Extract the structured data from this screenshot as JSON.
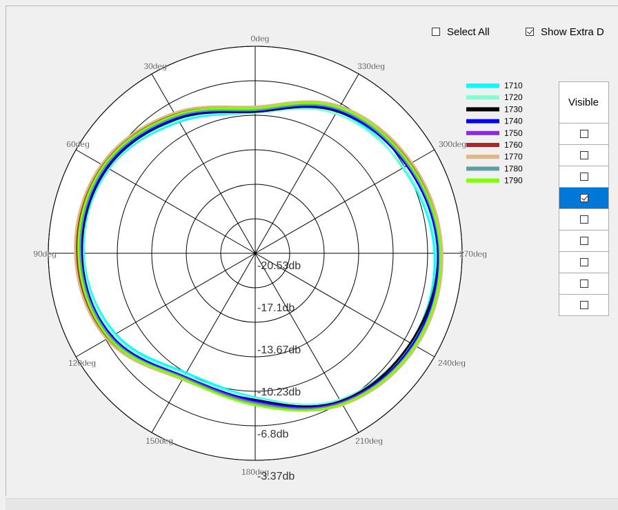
{
  "controls": {
    "select_all_label": "Select All",
    "show_extra_label": "Show Extra D"
  },
  "table": {
    "header": "Visible",
    "rows": [
      {
        "checked": false,
        "selected": false
      },
      {
        "checked": false,
        "selected": false
      },
      {
        "checked": false,
        "selected": false
      },
      {
        "checked": true,
        "selected": true
      },
      {
        "checked": false,
        "selected": false
      },
      {
        "checked": false,
        "selected": false
      },
      {
        "checked": false,
        "selected": false
      },
      {
        "checked": false,
        "selected": false
      },
      {
        "checked": false,
        "selected": false
      }
    ]
  },
  "chart_data": {
    "type": "polar-line",
    "angle_labels": [
      "0deg",
      "30deg",
      "60deg",
      "90deg",
      "120deg",
      "150deg",
      "180deg",
      "210deg",
      "240deg",
      "270deg",
      "300deg",
      "330deg"
    ],
    "radial_labels": [
      "-20.53db",
      "-17.1db",
      "-13.67db",
      "-10.23db",
      "-6.8db",
      "-3.37db"
    ],
    "radial_range": [
      -24.0,
      0.0
    ],
    "angle_direction": "counterclockwise-from-top",
    "grid": true,
    "legend_position": "right",
    "series": [
      {
        "name": "1710",
        "color": "#00ffff",
        "points": [
          [
            0,
            -7.7
          ],
          [
            30,
            -6.4
          ],
          [
            60,
            -4.4
          ],
          [
            90,
            -4.1
          ],
          [
            120,
            -5.3
          ],
          [
            150,
            -8.0
          ],
          [
            180,
            -7.3
          ],
          [
            210,
            -4.4
          ],
          [
            240,
            -3.2
          ],
          [
            270,
            -3.2
          ],
          [
            300,
            -4.2
          ],
          [
            330,
            -5.0
          ]
        ]
      },
      {
        "name": "1720",
        "color": "#7fffd4",
        "points": [
          [
            0,
            -7.7
          ],
          [
            30,
            -6.2
          ],
          [
            60,
            -4.3
          ],
          [
            90,
            -4.0
          ],
          [
            120,
            -5.1
          ],
          [
            150,
            -7.7
          ],
          [
            180,
            -7.2
          ],
          [
            210,
            -4.4
          ],
          [
            240,
            -3.0
          ],
          [
            270,
            -3.0
          ],
          [
            300,
            -4.1
          ],
          [
            330,
            -5.3
          ]
        ]
      },
      {
        "name": "1730",
        "color": "#000000",
        "points": [
          [
            0,
            -7.6
          ],
          [
            30,
            -6.0
          ],
          [
            60,
            -4.2
          ],
          [
            90,
            -3.9
          ],
          [
            120,
            -4.7
          ],
          [
            150,
            -7.1
          ],
          [
            180,
            -7.0
          ],
          [
            210,
            -4.2
          ],
          [
            240,
            -3.2
          ],
          [
            270,
            -2.8
          ],
          [
            300,
            -3.6
          ],
          [
            330,
            -5.0
          ]
        ]
      },
      {
        "name": "1740",
        "color": "#0000ff",
        "points": [
          [
            0,
            -7.5
          ],
          [
            30,
            -5.9
          ],
          [
            60,
            -4.1
          ],
          [
            90,
            -3.8
          ],
          [
            120,
            -4.8
          ],
          [
            150,
            -7.5
          ],
          [
            180,
            -6.9
          ],
          [
            210,
            -4.1
          ],
          [
            240,
            -2.9
          ],
          [
            270,
            -2.8
          ],
          [
            300,
            -3.7
          ],
          [
            330,
            -4.9
          ]
        ]
      },
      {
        "name": "1750",
        "color": "#8a2be2",
        "points": [
          [
            0,
            -7.3
          ],
          [
            30,
            -5.6
          ],
          [
            60,
            -3.9
          ],
          [
            90,
            -3.6
          ],
          [
            120,
            -4.5
          ],
          [
            150,
            -7.4
          ],
          [
            180,
            -6.7
          ],
          [
            210,
            -4.0
          ],
          [
            240,
            -2.7
          ],
          [
            270,
            -2.6
          ],
          [
            300,
            -3.4
          ],
          [
            330,
            -4.6
          ]
        ]
      },
      {
        "name": "1760",
        "color": "#a52a2a",
        "points": [
          [
            0,
            -7.1
          ],
          [
            30,
            -5.3
          ],
          [
            60,
            -3.5
          ],
          [
            90,
            -3.3
          ],
          [
            120,
            -4.3
          ],
          [
            150,
            -7.3
          ],
          [
            180,
            -6.6
          ],
          [
            210,
            -3.9
          ],
          [
            240,
            -2.6
          ],
          [
            270,
            -2.5
          ],
          [
            300,
            -3.2
          ],
          [
            330,
            -4.4
          ]
        ]
      },
      {
        "name": "1770",
        "color": "#deb887",
        "points": [
          [
            0,
            -7.0
          ],
          [
            30,
            -5.2
          ],
          [
            60,
            -3.4
          ],
          [
            90,
            -3.1
          ],
          [
            120,
            -4.1
          ],
          [
            150,
            -7.1
          ],
          [
            180,
            -6.5
          ],
          [
            210,
            -3.7
          ],
          [
            240,
            -2.4
          ],
          [
            270,
            -2.3
          ],
          [
            300,
            -3.0
          ],
          [
            330,
            -4.3
          ]
        ]
      },
      {
        "name": "1780",
        "color": "#5f9ea0",
        "points": [
          [
            0,
            -7.4
          ],
          [
            30,
            -5.7
          ],
          [
            60,
            -3.9
          ],
          [
            90,
            -3.7
          ],
          [
            120,
            -4.6
          ],
          [
            150,
            -7.3
          ],
          [
            180,
            -6.6
          ],
          [
            210,
            -3.9
          ],
          [
            240,
            -2.7
          ],
          [
            270,
            -2.6
          ],
          [
            300,
            -3.5
          ],
          [
            330,
            -4.7
          ]
        ]
      },
      {
        "name": "1790",
        "color": "#7fff00",
        "points": [
          [
            0,
            -7.2
          ],
          [
            30,
            -5.5
          ],
          [
            60,
            -3.7
          ],
          [
            90,
            -3.5
          ],
          [
            120,
            -4.4
          ],
          [
            150,
            -7.2
          ],
          [
            180,
            -6.4
          ],
          [
            210,
            -3.8
          ],
          [
            240,
            -2.6
          ],
          [
            270,
            -2.5
          ],
          [
            300,
            -3.3
          ],
          [
            330,
            -4.5
          ]
        ]
      }
    ]
  }
}
